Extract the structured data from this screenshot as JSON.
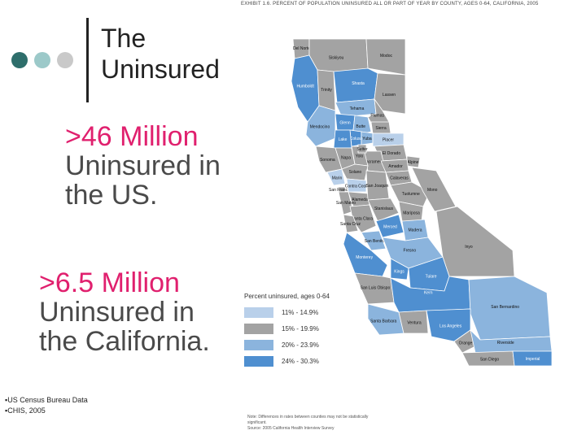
{
  "slide": {
    "title_line1": "The",
    "title_line2": "Uninsured",
    "stat1": {
      "line1": ">46 Million",
      "line2": "Uninsured in",
      "line3": "the US."
    },
    "stat2": {
      "line1": ">6.5 Million",
      "line2": "Uninsured in",
      "line3": "the California."
    },
    "sources": [
      "▪US Census Bureau Data",
      "▪CHIS, 2005"
    ]
  },
  "colors": {
    "title_text": "#222222",
    "highlight_number": "#e0206e",
    "body_text": "#4a4a4a",
    "dot_dark": "#2e6e6b",
    "dot_mid": "#9cc9c9",
    "dot_light": "#c9c9c9",
    "band_11_15": "#b9d0ea",
    "band_15_20": "#a3a3a3",
    "band_20_24": "#8bb4dd",
    "band_24_30": "#4f8fd0"
  },
  "exhibit": {
    "title": "EXHIBIT 1.6. PERCENT OF POPULATION UNINSURED ALL OR PART OF YEAR BY COUNTY, AGES 0-64, CALIFORNIA, 2005",
    "legend_title": "Percent uninsured, ages 0-64",
    "legend": [
      {
        "label": "11% - 14.9%",
        "color": "#b9d0ea"
      },
      {
        "label": "15% - 19.9%",
        "color": "#a3a3a3"
      },
      {
        "label": "20% - 23.9%",
        "color": "#8bb4dd"
      },
      {
        "label": "24% - 30.3%",
        "color": "#4f8fd0"
      }
    ],
    "note": "Note: Differences in rates between counties may not be statistically significant.",
    "source": "Source: 2005 California Health Interview Survey"
  },
  "counties": [
    {
      "name": "Del Norte",
      "band": "band_15_20"
    },
    {
      "name": "Siskiyou",
      "band": "band_15_20"
    },
    {
      "name": "Modoc",
      "band": "band_15_20"
    },
    {
      "name": "Humboldt",
      "band": "band_24_30"
    },
    {
      "name": "Trinity",
      "band": "band_15_20"
    },
    {
      "name": "Shasta",
      "band": "band_24_30"
    },
    {
      "name": "Lassen",
      "band": "band_15_20"
    },
    {
      "name": "Tehama",
      "band": "band_20_24"
    },
    {
      "name": "Plumas",
      "band": "band_15_20"
    },
    {
      "name": "Mendocino",
      "band": "band_20_24"
    },
    {
      "name": "Glenn",
      "band": "band_24_30"
    },
    {
      "name": "Butte",
      "band": "band_20_24"
    },
    {
      "name": "Sierra",
      "band": "band_15_20"
    },
    {
      "name": "Colusa",
      "band": "band_24_30"
    },
    {
      "name": "Lake",
      "band": "band_24_30"
    },
    {
      "name": "Yuba",
      "band": "band_20_24"
    },
    {
      "name": "Placer",
      "band": "band_11_15"
    },
    {
      "name": "El Dorado",
      "band": "band_15_20"
    },
    {
      "name": "Sacramento",
      "band": "band_15_20"
    },
    {
      "name": "Alpine",
      "band": "band_15_20"
    },
    {
      "name": "Amador",
      "band": "band_15_20"
    },
    {
      "name": "Sonoma",
      "band": "band_15_20"
    },
    {
      "name": "Napa",
      "band": "band_15_20"
    },
    {
      "name": "Yolo",
      "band": "band_15_20"
    },
    {
      "name": "Solano",
      "band": "band_15_20"
    },
    {
      "name": "Marin",
      "band": "band_11_15"
    },
    {
      "name": "Sutter",
      "band": "band_15_20"
    },
    {
      "name": "San Francisco",
      "band": "band_15_20"
    },
    {
      "name": "Alameda",
      "band": "band_15_20"
    },
    {
      "name": "San Mateo",
      "band": "band_15_20"
    },
    {
      "name": "Contra Costa",
      "band": "band_11_15"
    },
    {
      "name": "San Joaquin",
      "band": "band_15_20"
    },
    {
      "name": "Calaveras",
      "band": "band_15_20"
    },
    {
      "name": "Tuolumne",
      "band": "band_15_20"
    },
    {
      "name": "Stanislaus",
      "band": "band_15_20"
    },
    {
      "name": "Mariposa",
      "band": "band_15_20"
    },
    {
      "name": "Santa Clara",
      "band": "band_15_20"
    },
    {
      "name": "Santa Cruz",
      "band": "band_15_20"
    },
    {
      "name": "Merced",
      "band": "band_24_30"
    },
    {
      "name": "Madera",
      "band": "band_20_24"
    },
    {
      "name": "San Benito",
      "band": "band_20_24"
    },
    {
      "name": "Fresno",
      "band": "band_20_24"
    },
    {
      "name": "Mono",
      "band": "band_15_20"
    },
    {
      "name": "Inyo",
      "band": "band_15_20"
    },
    {
      "name": "Monterey",
      "band": "band_24_30"
    },
    {
      "name": "Tulare",
      "band": "band_24_30"
    },
    {
      "name": "Kings",
      "band": "band_24_30"
    },
    {
      "name": "San Luis Obispo",
      "band": "band_15_20"
    },
    {
      "name": "Kern",
      "band": "band_24_30"
    },
    {
      "name": "San Bernardino",
      "band": "band_20_24"
    },
    {
      "name": "Santa Barbara",
      "band": "band_20_24"
    },
    {
      "name": "Ventura",
      "band": "band_15_20"
    },
    {
      "name": "Los Angeles",
      "band": "band_24_30"
    },
    {
      "name": "Orange",
      "band": "band_15_20"
    },
    {
      "name": "Riverside",
      "band": "band_20_24"
    },
    {
      "name": "San Diego",
      "band": "band_15_20"
    },
    {
      "name": "Imperial",
      "band": "band_24_30"
    }
  ]
}
